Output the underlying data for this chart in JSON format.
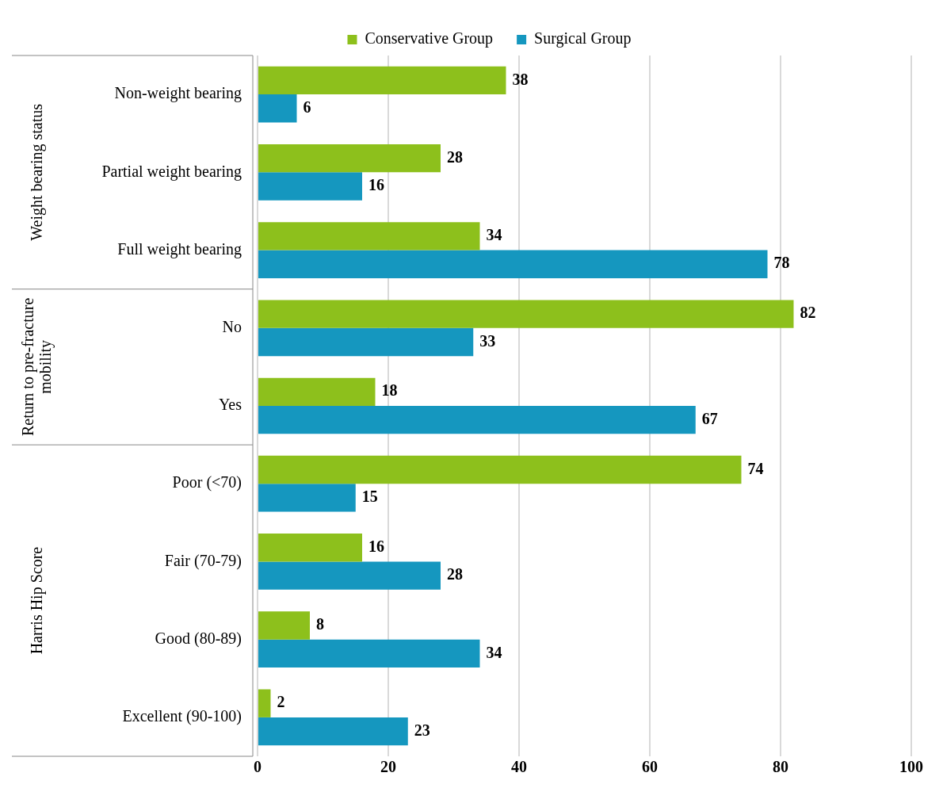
{
  "chart_data": {
    "type": "bar",
    "orientation": "horizontal",
    "categories": [
      "Non-weight bearing",
      "Partial weight bearing",
      "Full weight bearing",
      "No",
      "Yes",
      "Poor (<70)",
      "Fair (70-79)",
      "Good (80-89)",
      "Excellent (90-100)"
    ],
    "series": [
      {
        "name": "Conservative Group",
        "color": "#8dc01c",
        "values": [
          38,
          28,
          34,
          82,
          18,
          74,
          16,
          8,
          2
        ]
      },
      {
        "name": "Surgical Group",
        "color": "#1597bf",
        "values": [
          6,
          16,
          78,
          33,
          67,
          15,
          28,
          34,
          23
        ]
      }
    ],
    "xlim": [
      0,
      100
    ],
    "xticks": [
      0,
      20,
      40,
      60,
      80,
      100
    ],
    "grid": "x",
    "legend": "top",
    "data_labels": true,
    "annotations": [
      "Weight bearing status",
      "Return to pre-fracture mobility",
      "Harris Hip Score"
    ]
  }
}
